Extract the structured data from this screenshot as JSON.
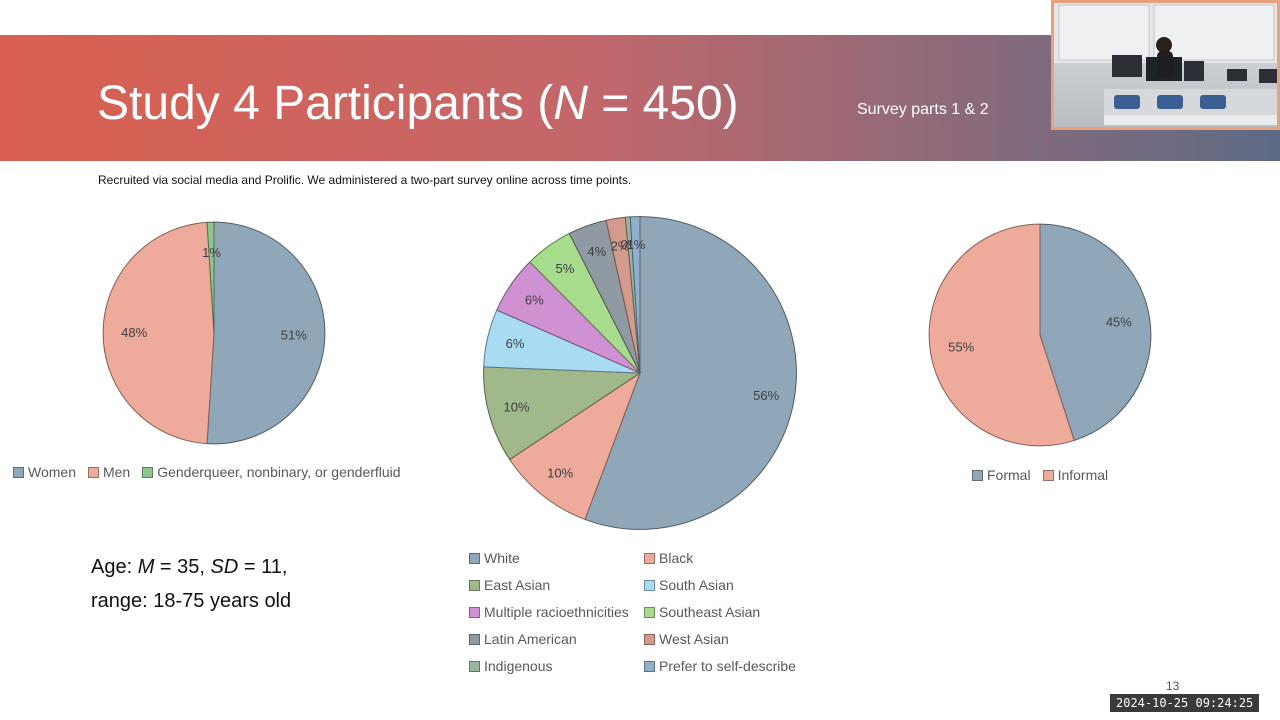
{
  "slide": {
    "title_prefix": "Study 4 Participants (",
    "title_n": "N",
    "title_suffix": " = 450)",
    "subtitle": "Survey parts 1 & 2",
    "intro": "Recruited via social media and Prolific. We administered a two-part survey online across time points.",
    "age_line1_prefix": "Age: ",
    "age_m": "M",
    "age_line1_mid": " = 35, ",
    "age_sd": "SD",
    "age_line1_suffix": " = 11,",
    "age_line2": "range: 18-75 years old",
    "page_number": "13"
  },
  "overlay": {
    "timestamp": "2024-10-25 09:24:25"
  },
  "chart_data": [
    {
      "type": "pie",
      "title": "",
      "categories": [
        "Women",
        "Men",
        "Genderqueer, nonbinary, or genderfluid"
      ],
      "values": [
        51,
        48,
        1
      ],
      "labels": [
        "51%",
        "48%",
        "1%"
      ],
      "colors": [
        "#8fa7b8",
        "#eeab9c",
        "#8fc68b"
      ],
      "legend": "bottom"
    },
    {
      "type": "pie",
      "title": "",
      "categories": [
        "White",
        "Black",
        "East Asian",
        "South Asian",
        "Multiple racioethnicities",
        "Southeast Asian",
        "Latin American",
        "West Asian",
        "Indigenous",
        "Prefer to self-describe"
      ],
      "values": [
        56,
        10,
        10,
        6,
        6,
        5,
        4,
        2,
        0.5,
        1
      ],
      "labels": [
        "56%",
        "10%",
        "10%",
        "6%",
        "6%",
        "5%",
        "4%",
        "2%",
        "0%",
        "1%"
      ],
      "colors": [
        "#8fa7b8",
        "#eeab9c",
        "#a0b88a",
        "#a9dcf2",
        "#cf91d2",
        "#a6dc8c",
        "#8f9aa3",
        "#d59a8e",
        "#9ab59d",
        "#8fb0cc"
      ],
      "legend": "bottom"
    },
    {
      "type": "pie",
      "title": "",
      "categories": [
        "Formal",
        "Informal"
      ],
      "values": [
        45,
        55
      ],
      "labels": [
        "45%",
        "55%"
      ],
      "colors": [
        "#8fa7b8",
        "#eeab9c"
      ],
      "legend": "bottom"
    }
  ]
}
